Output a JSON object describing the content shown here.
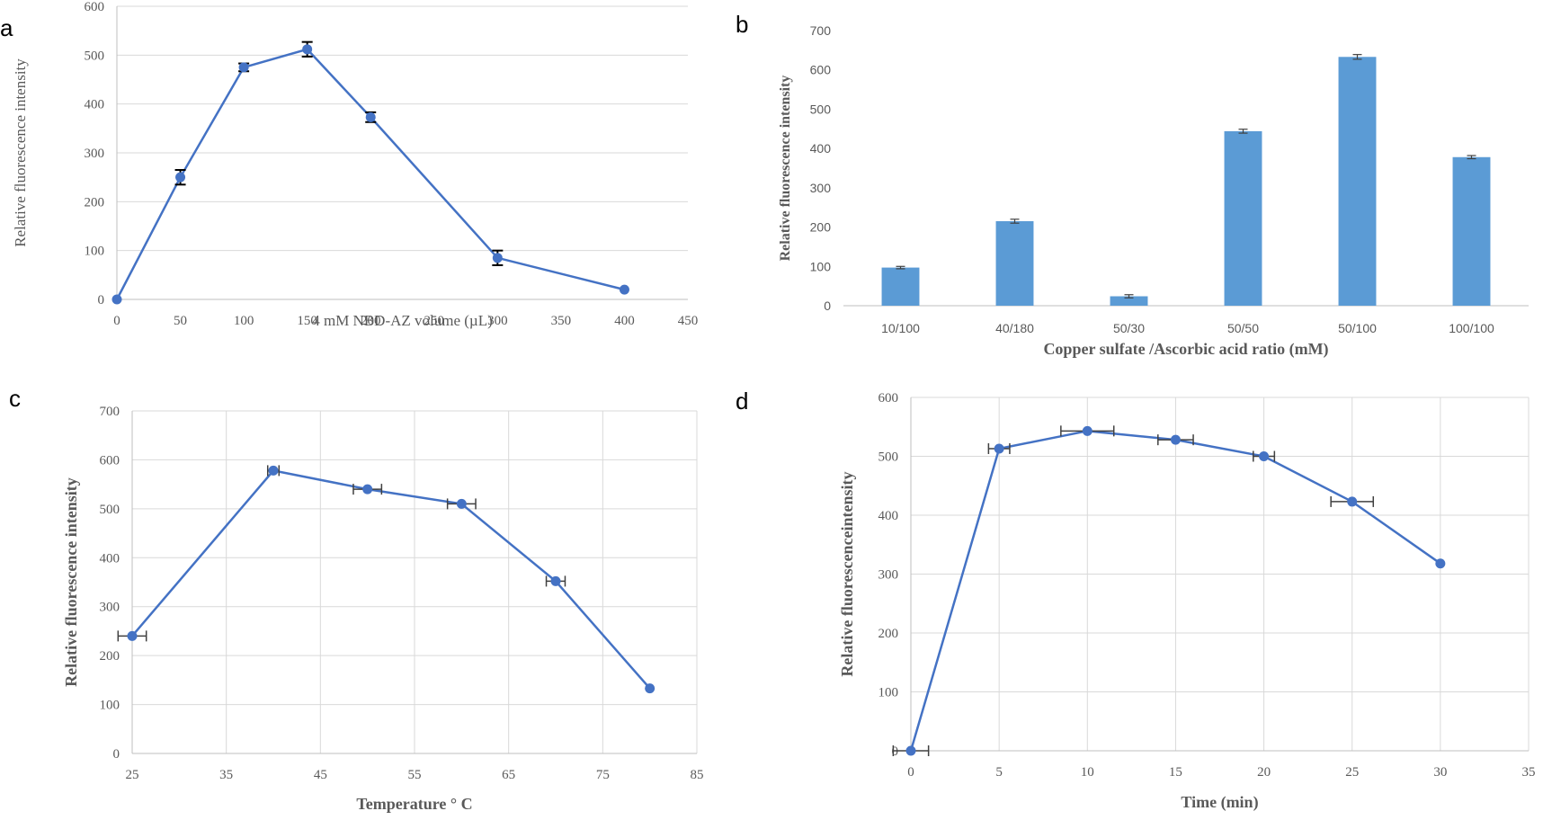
{
  "chart_data": [
    {
      "panel": "a",
      "type": "line",
      "x": [
        0,
        50,
        100,
        150,
        200,
        300,
        400
      ],
      "y": [
        0,
        250,
        475,
        512,
        373,
        85,
        20
      ],
      "y_error": [
        0,
        15,
        8,
        15,
        10,
        15,
        0
      ],
      "xlabel": "4 mM NBD-AZ volume (µL)",
      "ylabel": "Relative fluorescence intensity",
      "xlim": [
        0,
        450
      ],
      "ylim": [
        0,
        600
      ],
      "x_ticks": [
        "0",
        "50",
        "100",
        "150",
        "200",
        "250",
        "300",
        "350",
        "400",
        "450"
      ],
      "y_ticks": [
        "0",
        "100",
        "200",
        "300",
        "400",
        "500",
        "600"
      ],
      "grid": "horizontal",
      "color": "#4472c4"
    },
    {
      "panel": "b",
      "type": "bar",
      "categories": [
        "10/100",
        "40/180",
        "50/30",
        "50/50",
        "50/100",
        "100/100"
      ],
      "values": [
        97,
        215,
        24,
        444,
        633,
        378
      ],
      "y_error": [
        3,
        5,
        4,
        5,
        6,
        4
      ],
      "xlabel": "Copper sulfate /Ascorbic acid ratio (mM)",
      "ylabel": "Relative fluorescence intensity",
      "ylim": [
        0,
        700
      ],
      "y_ticks": [
        "0",
        "100",
        "200",
        "300",
        "400",
        "500",
        "600",
        "700"
      ],
      "grid": "none",
      "color": "#5b9bd5"
    },
    {
      "panel": "c",
      "type": "line",
      "x": [
        25,
        40,
        50,
        60,
        70,
        80
      ],
      "y": [
        240,
        578,
        540,
        510,
        352,
        133
      ],
      "x_error": [
        1.5,
        0.6,
        1.5,
        1.5,
        1,
        0
      ],
      "xlabel": "Temperature ° C",
      "ylabel": "Relative  fluorescence intensity",
      "xlim": [
        25,
        85
      ],
      "ylim": [
        0,
        700
      ],
      "x_ticks": [
        "25",
        "35",
        "45",
        "55",
        "65",
        "75",
        "85"
      ],
      "y_ticks": [
        "0",
        "100",
        "200",
        "300",
        "400",
        "500",
        "600",
        "700"
      ],
      "grid": "both",
      "color": "#4472c4"
    },
    {
      "panel": "d",
      "type": "line",
      "x": [
        0,
        5,
        10,
        15,
        20,
        25,
        30
      ],
      "y": [
        0,
        513,
        543,
        528,
        500,
        423,
        318
      ],
      "x_error": [
        1,
        0.6,
        1.5,
        1,
        0.6,
        1.2,
        0
      ],
      "xlabel": "Time (min)",
      "ylabel": "Relative fluorescenceintensity",
      "xlim": [
        0,
        35
      ],
      "ylim": [
        0,
        600
      ],
      "x_ticks": [
        "0",
        "5",
        "10",
        "15",
        "20",
        "25",
        "30",
        "35"
      ],
      "y_ticks": [
        "0",
        "100",
        "200",
        "300",
        "400",
        "500",
        "600"
      ],
      "grid": "both",
      "color": "#4472c4"
    }
  ]
}
